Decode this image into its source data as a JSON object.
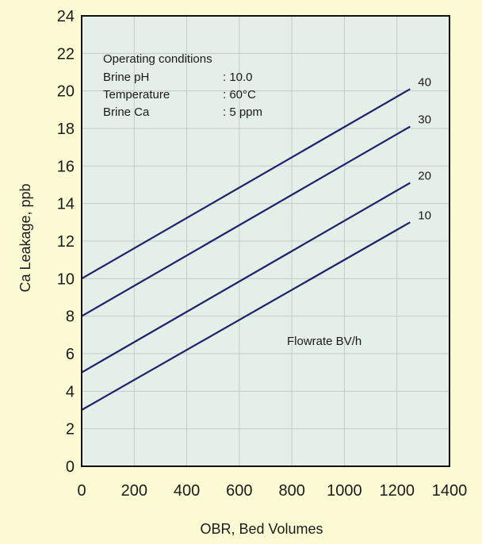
{
  "chart_data": {
    "type": "line",
    "xlabel": "OBR, Bed Volumes",
    "ylabel": "Ca Leakage, ppb",
    "xlim": [
      0,
      1400
    ],
    "ylim": [
      0,
      24
    ],
    "x_ticks": [
      "0",
      "200",
      "400",
      "600",
      "800",
      "1000",
      "1200",
      "1400"
    ],
    "y_ticks": [
      "0",
      "2",
      "4",
      "6",
      "8",
      "10",
      "12",
      "14",
      "16",
      "18",
      "20",
      "22",
      "24"
    ],
    "grid": true,
    "series": [
      {
        "name": "40",
        "x": [
          0,
          1250
        ],
        "y": [
          10,
          20.1
        ]
      },
      {
        "name": "30",
        "x": [
          0,
          1250
        ],
        "y": [
          8,
          18.1
        ]
      },
      {
        "name": "20",
        "x": [
          0,
          1250
        ],
        "y": [
          5,
          15.1
        ]
      },
      {
        "name": "10",
        "x": [
          0,
          1250
        ],
        "y": [
          3,
          13
        ]
      }
    ],
    "series_legend_title": "Flowrate BV/h",
    "annotation": {
      "title": "Operating conditions",
      "rows": [
        {
          "label": "Brine pH",
          "value": ": 10.0"
        },
        {
          "label": "Temperature",
          "value": ": 60°C"
        },
        {
          "label": "Brine Ca",
          "value": ": 5 ppm"
        }
      ]
    },
    "colors": {
      "background": "#fdfbd3",
      "plot_background": "#e4efe7",
      "grid": "#c4ccc8",
      "line": "#1f1f6e",
      "axis": "#111111"
    }
  }
}
